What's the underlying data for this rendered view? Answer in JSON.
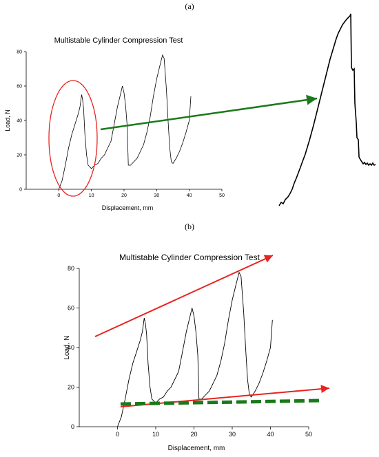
{
  "panel_labels": {
    "a": "(a)",
    "b": "(b)"
  },
  "colors": {
    "curve": "#000000",
    "highlight": "#e8231f",
    "arrow_green": "#1a7a1a",
    "trend_red": "#e8231f",
    "dashed_green": "#1a7a1a"
  },
  "chart_data": [
    {
      "panel": "a",
      "type": "line",
      "title": "Multistable Cylinder Compression Test",
      "xlabel": "Displacement, mm",
      "ylabel": "Load, N",
      "xlim": [
        -10,
        50
      ],
      "ylim": [
        0,
        80
      ],
      "xticks": [
        0,
        10,
        20,
        30,
        40,
        50
      ],
      "yticks": [
        0,
        20,
        40,
        60,
        80
      ],
      "grid": false,
      "series": [
        {
          "x": [
            0,
            1,
            2,
            3,
            4,
            5,
            6,
            6.5,
            7,
            7.3,
            7.6,
            8,
            8.5,
            9,
            10,
            11,
            12,
            13,
            14,
            15,
            16,
            17,
            18,
            19,
            19.5,
            20,
            20.5,
            21,
            21.3,
            22,
            23,
            24,
            25,
            26,
            27,
            28,
            29,
            30,
            31,
            31.8,
            32.3,
            33,
            33.5,
            34,
            34.5,
            35,
            36,
            37,
            38,
            39,
            40,
            40.5
          ],
          "y": [
            0,
            5,
            14,
            24,
            32,
            38,
            44,
            48,
            55,
            52,
            47,
            32,
            20,
            14,
            12,
            14,
            15,
            18,
            20,
            24,
            28,
            38,
            48,
            56,
            60,
            56,
            48,
            36,
            14,
            14,
            16,
            18,
            22,
            26,
            33,
            42,
            54,
            64,
            72,
            78,
            76,
            58,
            40,
            24,
            16,
            15,
            18,
            22,
            27,
            33,
            40,
            54
          ]
        }
      ]
    },
    {
      "panel": "b",
      "type": "line",
      "title": "Multistable Cylinder Compression Test",
      "xlabel": "Displacement, mm",
      "ylabel": "Load, N",
      "xlim": [
        -10,
        50
      ],
      "ylim": [
        0,
        80
      ],
      "xticks": [
        0,
        10,
        20,
        30,
        40,
        50
      ],
      "yticks": [
        0,
        20,
        40,
        60,
        80
      ],
      "grid": false,
      "series": [
        {
          "x": [
            0,
            1,
            2,
            3,
            4,
            5,
            6,
            6.5,
            7,
            7.3,
            7.6,
            8,
            8.5,
            9,
            10,
            11,
            12,
            13,
            14,
            15,
            16,
            17,
            18,
            19,
            19.5,
            20,
            20.5,
            21,
            21.3,
            22,
            23,
            24,
            25,
            26,
            27,
            28,
            29,
            30,
            31,
            31.8,
            32.3,
            33,
            33.5,
            34,
            34.5,
            35,
            36,
            37,
            38,
            39,
            40,
            40.5
          ],
          "y": [
            0,
            5,
            14,
            24,
            32,
            38,
            44,
            48,
            55,
            52,
            47,
            32,
            20,
            14,
            12,
            14,
            15,
            18,
            20,
            24,
            28,
            38,
            48,
            56,
            60,
            56,
            48,
            36,
            14,
            14,
            16,
            18,
            22,
            26,
            33,
            42,
            54,
            64,
            72,
            78,
            76,
            58,
            40,
            24,
            16,
            15,
            18,
            22,
            27,
            33,
            40,
            54
          ]
        }
      ]
    }
  ]
}
